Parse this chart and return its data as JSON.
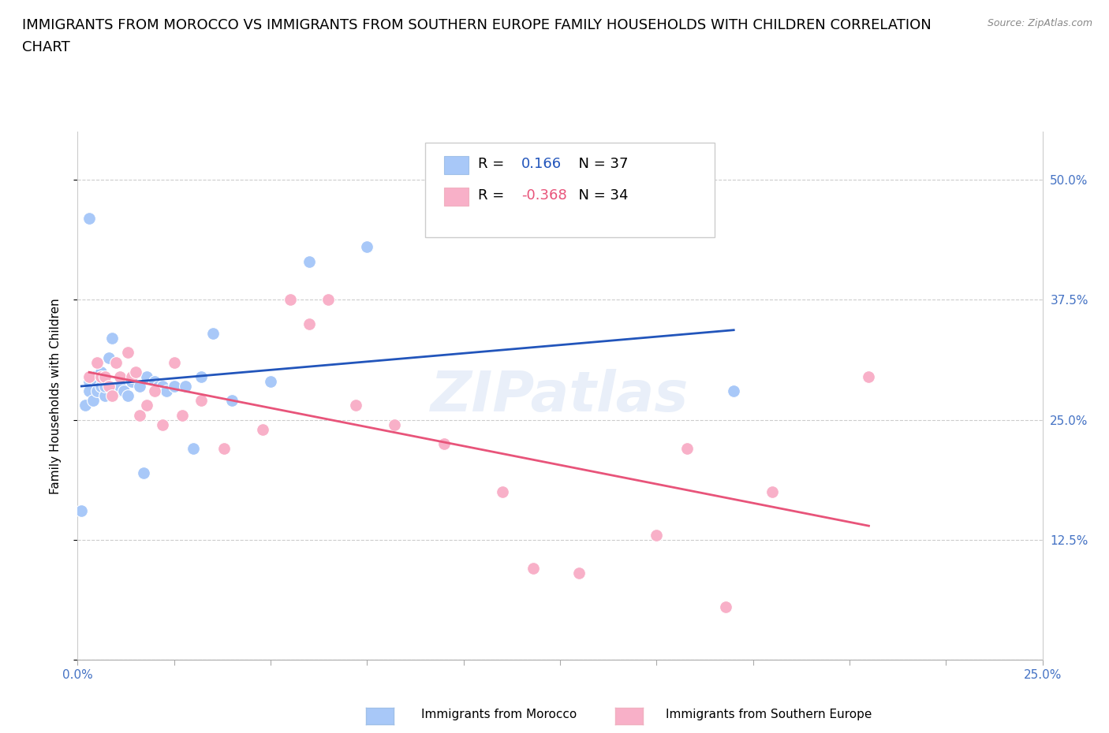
{
  "title_line1": "IMMIGRANTS FROM MOROCCO VS IMMIGRANTS FROM SOUTHERN EUROPE FAMILY HOUSEHOLDS WITH CHILDREN CORRELATION",
  "title_line2": "CHART",
  "source": "Source: ZipAtlas.com",
  "ylabel": "Family Households with Children",
  "xlim": [
    0.0,
    0.25
  ],
  "ylim": [
    0.0,
    0.55
  ],
  "xticks": [
    0.0,
    0.025,
    0.05,
    0.075,
    0.1,
    0.125,
    0.15,
    0.175,
    0.2,
    0.225,
    0.25
  ],
  "yticks": [
    0.0,
    0.125,
    0.25,
    0.375,
    0.5
  ],
  "ytick_labels": [
    "",
    "12.5%",
    "25.0%",
    "37.5%",
    "50.0%"
  ],
  "xtick_labels": [
    "0.0%",
    "",
    "",
    "",
    "",
    "",
    "",
    "",
    "",
    "",
    "25.0%"
  ],
  "morocco_R": "0.166",
  "morocco_N": "37",
  "southern_R": "-0.368",
  "southern_N": "34",
  "morocco_color": "#a8c8f8",
  "southern_color": "#f8b0c8",
  "morocco_line_color": "#2255bb",
  "southern_line_color": "#e8547a",
  "morocco_x": [
    0.001,
    0.002,
    0.003,
    0.003,
    0.004,
    0.004,
    0.005,
    0.005,
    0.006,
    0.006,
    0.007,
    0.007,
    0.008,
    0.009,
    0.01,
    0.011,
    0.012,
    0.013,
    0.014,
    0.016,
    0.017,
    0.018,
    0.02,
    0.021,
    0.022,
    0.023,
    0.025,
    0.028,
    0.03,
    0.032,
    0.035,
    0.04,
    0.05,
    0.06,
    0.075,
    0.17,
    0.003
  ],
  "morocco_y": [
    0.155,
    0.265,
    0.29,
    0.28,
    0.295,
    0.27,
    0.29,
    0.28,
    0.3,
    0.285,
    0.275,
    0.285,
    0.315,
    0.335,
    0.28,
    0.285,
    0.28,
    0.275,
    0.29,
    0.285,
    0.195,
    0.295,
    0.29,
    0.285,
    0.285,
    0.28,
    0.285,
    0.285,
    0.22,
    0.295,
    0.34,
    0.27,
    0.29,
    0.415,
    0.43,
    0.28,
    0.46
  ],
  "southern_x": [
    0.003,
    0.005,
    0.006,
    0.007,
    0.008,
    0.009,
    0.01,
    0.011,
    0.013,
    0.014,
    0.015,
    0.016,
    0.018,
    0.02,
    0.022,
    0.025,
    0.027,
    0.032,
    0.038,
    0.048,
    0.055,
    0.06,
    0.065,
    0.072,
    0.082,
    0.095,
    0.11,
    0.118,
    0.13,
    0.15,
    0.158,
    0.168,
    0.18,
    0.205
  ],
  "southern_y": [
    0.295,
    0.31,
    0.295,
    0.295,
    0.285,
    0.275,
    0.31,
    0.295,
    0.32,
    0.295,
    0.3,
    0.255,
    0.265,
    0.28,
    0.245,
    0.31,
    0.255,
    0.27,
    0.22,
    0.24,
    0.375,
    0.35,
    0.375,
    0.265,
    0.245,
    0.225,
    0.175,
    0.095,
    0.09,
    0.13,
    0.22,
    0.055,
    0.175,
    0.295
  ],
  "watermark": "ZIPatlas",
  "background_color": "#ffffff",
  "grid_color": "#cccccc",
  "tick_color": "#4472c4",
  "title_fontsize": 13,
  "axis_label_fontsize": 11,
  "tick_fontsize": 11,
  "source_fontsize": 9
}
